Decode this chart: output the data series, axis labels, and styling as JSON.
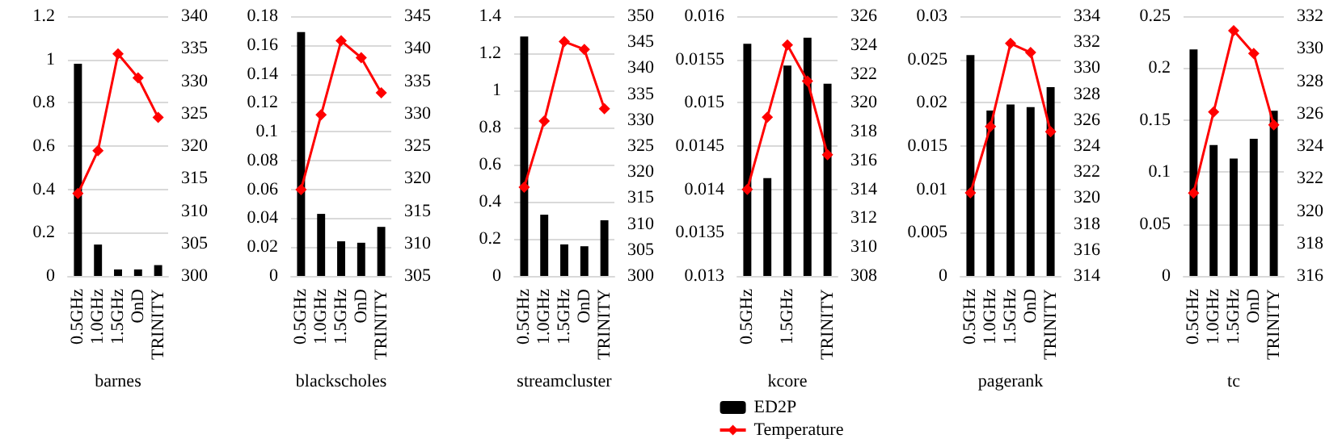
{
  "chart_data": [
    {
      "type": "bar",
      "xlabel": "barnes",
      "categories": [
        "0.5GHz",
        "1.0GHz",
        "1.5GHz",
        "OnD",
        "TRINITY"
      ],
      "ylim": [
        0,
        1.2
      ],
      "yticks": [
        0,
        0.2,
        0.4,
        0.6,
        0.8,
        1,
        1.2
      ],
      "y2lim": [
        300,
        340
      ],
      "y2ticks": [
        300,
        305,
        310,
        315,
        320,
        325,
        330,
        335,
        340
      ],
      "grid": "y",
      "marker": "diamond",
      "legend": false,
      "series": [
        {
          "color": "#000000",
          "values": [
            0.98,
            0.145,
            0.03,
            0.03,
            0.05
          ]
        },
        {
          "type": "line",
          "axis": "y2",
          "color": "#ff0000",
          "values": [
            312.7,
            319.3,
            334.2,
            330.5,
            324.4
          ]
        }
      ]
    },
    {
      "type": "bar",
      "xlabel": "blackscholes",
      "categories": [
        "0.5GHz",
        "1.0GHz",
        "1.5GHz",
        "OnD",
        "TRINITY"
      ],
      "ylim": [
        0,
        0.18
      ],
      "yticks": [
        0,
        0.02,
        0.04,
        0.06,
        0.08,
        0.1,
        0.12,
        0.14,
        0.16,
        0.18
      ],
      "y2lim": [
        305,
        345
      ],
      "y2ticks": [
        305,
        310,
        315,
        320,
        325,
        330,
        335,
        340,
        345
      ],
      "grid": "y",
      "marker": "diamond",
      "legend": false,
      "series": [
        {
          "color": "#000000",
          "values": [
            0.169,
            0.043,
            0.024,
            0.023,
            0.034
          ]
        },
        {
          "type": "line",
          "axis": "y2",
          "color": "#ff0000",
          "values": [
            318.3,
            329.8,
            341.2,
            338.6,
            333.2
          ]
        }
      ]
    },
    {
      "type": "bar",
      "xlabel": "streamcluster",
      "categories": [
        "0.5GHz",
        "1.0GHz",
        "1.5GHz",
        "OnD",
        "TRINITY"
      ],
      "ylim": [
        0,
        1.4
      ],
      "yticks": [
        0,
        0.2,
        0.4,
        0.6,
        0.8,
        1,
        1.2,
        1.4
      ],
      "y2lim": [
        300,
        350
      ],
      "y2ticks": [
        300,
        305,
        310,
        315,
        320,
        325,
        330,
        335,
        340,
        345,
        350
      ],
      "grid": "y",
      "marker": "diamond",
      "legend": false,
      "series": [
        {
          "color": "#000000",
          "values": [
            1.29,
            0.33,
            0.17,
            0.16,
            0.3
          ]
        },
        {
          "type": "line",
          "axis": "y2",
          "color": "#ff0000",
          "values": [
            317.1,
            329.8,
            345.1,
            343.6,
            332.2
          ]
        }
      ]
    },
    {
      "type": "bar",
      "xlabel": "kcore",
      "categories": [
        "0.5GHz",
        null,
        "1.5GHz",
        null,
        "TRINITY"
      ],
      "ylim": [
        0.013,
        0.016
      ],
      "yticks": [
        0.013,
        0.0135,
        0.014,
        0.0145,
        0.015,
        0.0155,
        0.016
      ],
      "y2lim": [
        308,
        326
      ],
      "y2ticks": [
        308,
        310,
        312,
        314,
        316,
        318,
        320,
        322,
        324,
        326
      ],
      "grid": "y",
      "marker": "diamond",
      "legend": "bottom",
      "series": [
        {
          "name": "ED2P",
          "color": "#000000",
          "values": [
            0.01568,
            0.01413,
            0.01543,
            0.01575,
            0.01522
          ]
        },
        {
          "name": "Temperature",
          "type": "line",
          "axis": "y2",
          "color": "#ff0000",
          "values": [
            314,
            319,
            324,
            321.5,
            316.4
          ]
        }
      ]
    },
    {
      "type": "bar",
      "xlabel": "pagerank",
      "categories": [
        "0.5GHz",
        "1.0GHz",
        "1.5GHz",
        "OnD",
        "TRINITY"
      ],
      "ylim": [
        0,
        0.03
      ],
      "yticks": [
        0,
        0.005,
        0.01,
        0.015,
        0.02,
        0.025,
        0.03
      ],
      "y2lim": [
        314,
        334
      ],
      "y2ticks": [
        314,
        316,
        318,
        320,
        322,
        324,
        326,
        328,
        330,
        332,
        334
      ],
      "grid": "y",
      "marker": "diamond",
      "legend": false,
      "series": [
        {
          "color": "#000000",
          "values": [
            0.0255,
            0.0191,
            0.0198,
            0.0195,
            0.0218
          ]
        },
        {
          "type": "line",
          "axis": "y2",
          "color": "#ff0000",
          "values": [
            320.4,
            325.5,
            331.9,
            331.2,
            325.1
          ]
        }
      ]
    },
    {
      "type": "bar",
      "xlabel": "tc",
      "categories": [
        "0.5GHz",
        "1.0GHz",
        "1.5GHz",
        "OnD",
        "TRINITY"
      ],
      "ylim": [
        0,
        0.25
      ],
      "yticks": [
        0,
        0.05,
        0.1,
        0.15,
        0.2,
        0.25
      ],
      "y2lim": [
        316,
        332
      ],
      "y2ticks": [
        316,
        318,
        320,
        322,
        324,
        326,
        328,
        330,
        332
      ],
      "grid": "y",
      "marker": "diamond",
      "legend": false,
      "series": [
        {
          "color": "#000000",
          "values": [
            0.218,
            0.126,
            0.113,
            0.132,
            0.159
          ]
        },
        {
          "type": "line",
          "axis": "y2",
          "color": "#ff0000",
          "values": [
            321.1,
            326.1,
            331.1,
            329.7,
            325.3
          ]
        }
      ]
    }
  ]
}
